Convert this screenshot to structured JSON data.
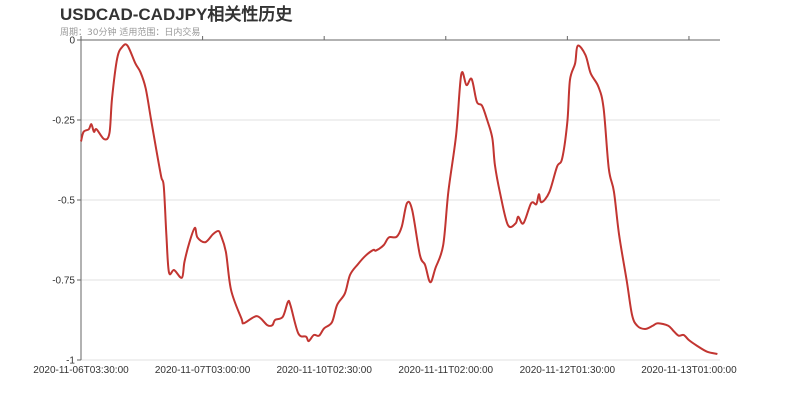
{
  "chart_data": {
    "type": "line",
    "title": "USDCAD-CADJPY相关性历史",
    "subtitle": "周期：30分钟 适用范围：日内交易",
    "xlabel": "",
    "ylabel": "",
    "xlim": [
      0,
      247
    ],
    "ylim": [
      -1,
      0
    ],
    "grid": true,
    "line_color": "#c23531",
    "y_ticks": [
      {
        "value": 0,
        "label": "0"
      },
      {
        "value": -0.25,
        "label": "-0.25"
      },
      {
        "value": -0.5,
        "label": "-0.5"
      },
      {
        "value": -0.75,
        "label": "-0.75"
      },
      {
        "value": -1,
        "label": "-1"
      }
    ],
    "x_ticks": [
      {
        "index": 0,
        "label": "2020-11-06T03:30:00"
      },
      {
        "index": 47,
        "label": "2020-11-07T03:00:00"
      },
      {
        "index": 94,
        "label": "2020-11-10T02:30:00"
      },
      {
        "index": 141,
        "label": "2020-11-11T02:00:00"
      },
      {
        "index": 188,
        "label": "2020-11-12T01:30:00"
      },
      {
        "index": 235,
        "label": "2020-11-13T01:00:00"
      }
    ],
    "series": [
      {
        "points": [
          [
            0,
            -0.317
          ],
          [
            1,
            -0.287
          ],
          [
            3,
            -0.279
          ],
          [
            4,
            -0.263
          ],
          [
            5,
            -0.287
          ],
          [
            6,
            -0.279
          ],
          [
            9,
            -0.31
          ],
          [
            11,
            -0.291
          ],
          [
            12,
            -0.182
          ],
          [
            14,
            -0.057
          ],
          [
            16,
            -0.021
          ],
          [
            18,
            -0.018
          ],
          [
            21,
            -0.073
          ],
          [
            23,
            -0.101
          ],
          [
            25,
            -0.151
          ],
          [
            27,
            -0.245
          ],
          [
            29,
            -0.338
          ],
          [
            31,
            -0.427
          ],
          [
            32,
            -0.458
          ],
          [
            33,
            -0.609
          ],
          [
            34,
            -0.726
          ],
          [
            36,
            -0.719
          ],
          [
            39,
            -0.743
          ],
          [
            40,
            -0.693
          ],
          [
            42,
            -0.63
          ],
          [
            44,
            -0.587
          ],
          [
            45,
            -0.617
          ],
          [
            48,
            -0.632
          ],
          [
            51,
            -0.607
          ],
          [
            53,
            -0.597
          ],
          [
            54,
            -0.609
          ],
          [
            56,
            -0.662
          ],
          [
            58,
            -0.781
          ],
          [
            62,
            -0.87
          ],
          [
            63,
            -0.885
          ],
          [
            68,
            -0.863
          ],
          [
            72,
            -0.891
          ],
          [
            74,
            -0.891
          ],
          [
            75,
            -0.875
          ],
          [
            78,
            -0.865
          ],
          [
            80,
            -0.818
          ],
          [
            81,
            -0.83
          ],
          [
            84,
            -0.917
          ],
          [
            87,
            -0.927
          ],
          [
            88,
            -0.941
          ],
          [
            90,
            -0.922
          ],
          [
            92,
            -0.924
          ],
          [
            94,
            -0.901
          ],
          [
            97,
            -0.882
          ],
          [
            99,
            -0.828
          ],
          [
            102,
            -0.792
          ],
          [
            104,
            -0.734
          ],
          [
            107,
            -0.701
          ],
          [
            110,
            -0.674
          ],
          [
            113,
            -0.656
          ],
          [
            114,
            -0.658
          ],
          [
            117,
            -0.641
          ],
          [
            119,
            -0.617
          ],
          [
            122,
            -0.615
          ],
          [
            124,
            -0.583
          ],
          [
            126,
            -0.51
          ],
          [
            128,
            -0.531
          ],
          [
            131,
            -0.672
          ],
          [
            133,
            -0.703
          ],
          [
            135,
            -0.757
          ],
          [
            137,
            -0.713
          ],
          [
            140,
            -0.641
          ],
          [
            142,
            -0.474
          ],
          [
            145,
            -0.297
          ],
          [
            147,
            -0.107
          ],
          [
            149,
            -0.141
          ],
          [
            151,
            -0.122
          ],
          [
            153,
            -0.193
          ],
          [
            155,
            -0.205
          ],
          [
            157,
            -0.25
          ],
          [
            159,
            -0.307
          ],
          [
            160,
            -0.391
          ],
          [
            162,
            -0.479
          ],
          [
            165,
            -0.578
          ],
          [
            168,
            -0.573
          ],
          [
            169,
            -0.552
          ],
          [
            171,
            -0.573
          ],
          [
            174,
            -0.51
          ],
          [
            176,
            -0.513
          ],
          [
            177,
            -0.482
          ],
          [
            178,
            -0.507
          ],
          [
            181,
            -0.476
          ],
          [
            184,
            -0.396
          ],
          [
            186,
            -0.37
          ],
          [
            188,
            -0.255
          ],
          [
            189,
            -0.125
          ],
          [
            191,
            -0.073
          ],
          [
            192,
            -0.018
          ],
          [
            195,
            -0.047
          ],
          [
            197,
            -0.104
          ],
          [
            200,
            -0.146
          ],
          [
            202,
            -0.213
          ],
          [
            204,
            -0.401
          ],
          [
            206,
            -0.474
          ],
          [
            208,
            -0.609
          ],
          [
            211,
            -0.755
          ],
          [
            213,
            -0.859
          ],
          [
            215,
            -0.893
          ],
          [
            218,
            -0.903
          ],
          [
            221,
            -0.893
          ],
          [
            223,
            -0.885
          ],
          [
            227,
            -0.893
          ],
          [
            229,
            -0.909
          ],
          [
            231,
            -0.924
          ],
          [
            233,
            -0.922
          ],
          [
            235,
            -0.938
          ],
          [
            238,
            -0.955
          ],
          [
            242,
            -0.974
          ],
          [
            246,
            -0.981
          ]
        ]
      }
    ]
  }
}
